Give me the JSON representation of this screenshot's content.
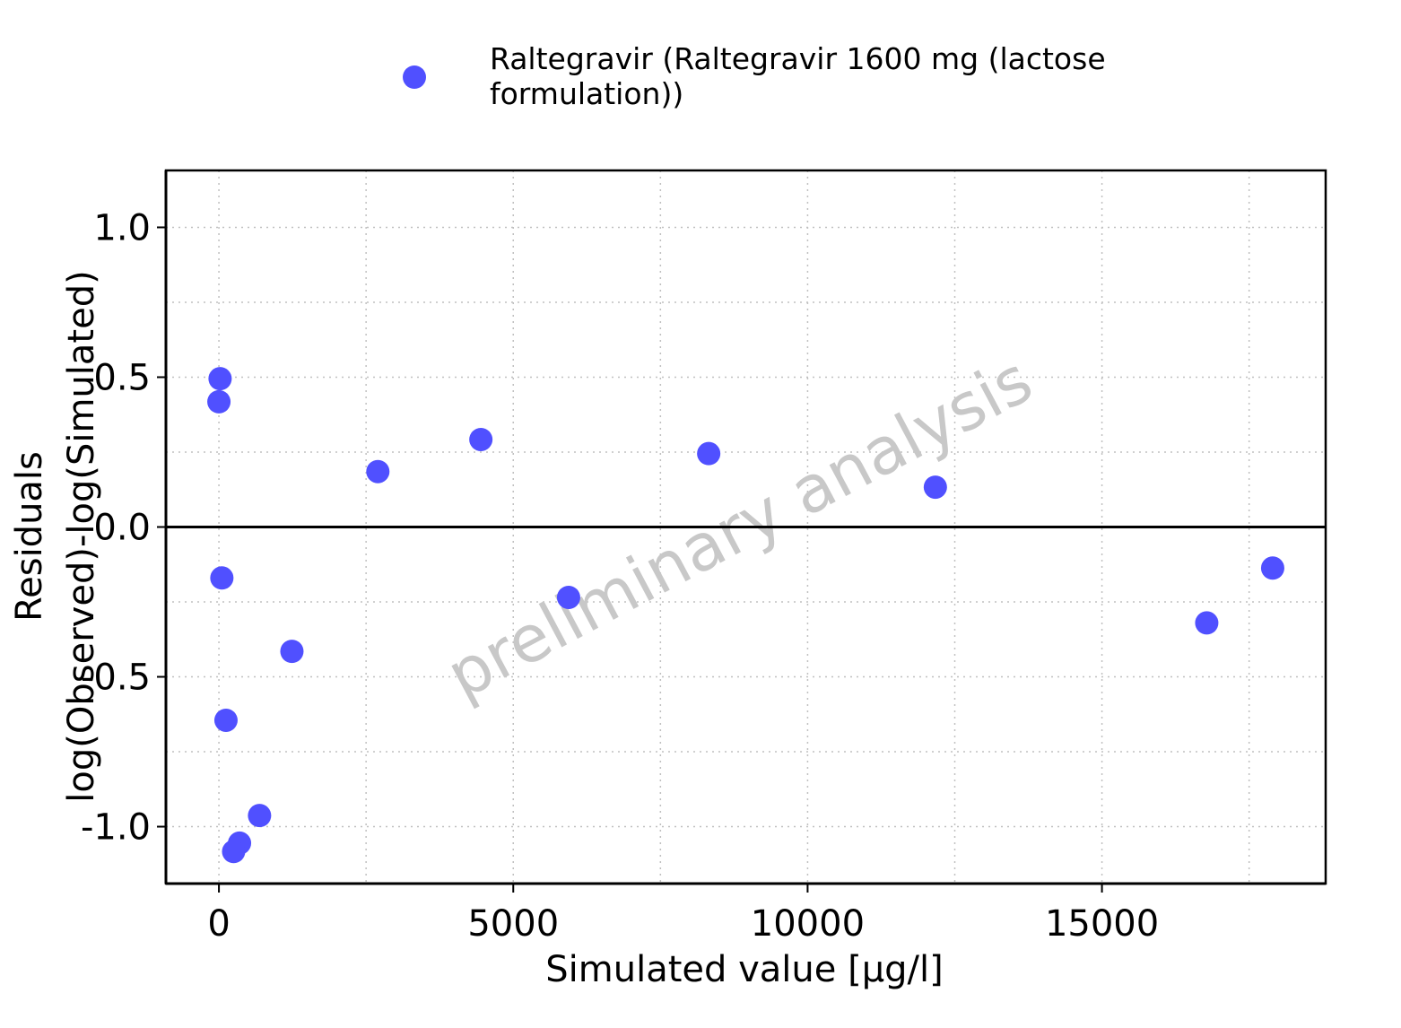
{
  "colors": {
    "point": "#5050FF",
    "watermark": "#C8C8C8",
    "grid": "#C0C0C0",
    "axis": "#000000"
  },
  "legend": {
    "label_line1": "Raltegravir (Raltegravir 1600 mg (lactose",
    "label_line2": "formulation))",
    "position": "top"
  },
  "watermark": "preliminary analysis",
  "chart_data": {
    "type": "scatter",
    "xlabel": "Simulated value [µg/l]",
    "ylabel_line1": "Residuals",
    "ylabel_line2": "log(Observed)-log(Simulated)",
    "xlim": [
      -900,
      18800
    ],
    "ylim": [
      -1.19,
      1.19
    ],
    "x_ticks": [
      0,
      5000,
      10000,
      15000
    ],
    "x_tick_labels": [
      "0",
      "5000",
      "10000",
      "15000"
    ],
    "y_ticks": [
      1.0,
      0.5,
      0.0,
      -0.5,
      -1.0
    ],
    "y_tick_labels": [
      "1.0",
      "0.5",
      "0.0",
      "-0.5",
      "-1.0"
    ],
    "grid": true,
    "reference_line_y": 0,
    "series": [
      {
        "name": "Raltegravir (Raltegravir 1600 mg (lactose formulation))",
        "points": [
          {
            "x": 20,
            "y": 0.495
          },
          {
            "x": 0,
            "y": 0.418
          },
          {
            "x": 2700,
            "y": 0.185
          },
          {
            "x": 4450,
            "y": 0.292
          },
          {
            "x": 8320,
            "y": 0.245
          },
          {
            "x": 12170,
            "y": 0.133
          },
          {
            "x": 50,
            "y": -0.17
          },
          {
            "x": 5940,
            "y": -0.235
          },
          {
            "x": 17900,
            "y": -0.137
          },
          {
            "x": 16780,
            "y": -0.32
          },
          {
            "x": 1240,
            "y": -0.415
          },
          {
            "x": 120,
            "y": -0.645
          },
          {
            "x": 690,
            "y": -0.963
          },
          {
            "x": 350,
            "y": -1.055
          },
          {
            "x": 250,
            "y": -1.083
          }
        ]
      }
    ]
  }
}
